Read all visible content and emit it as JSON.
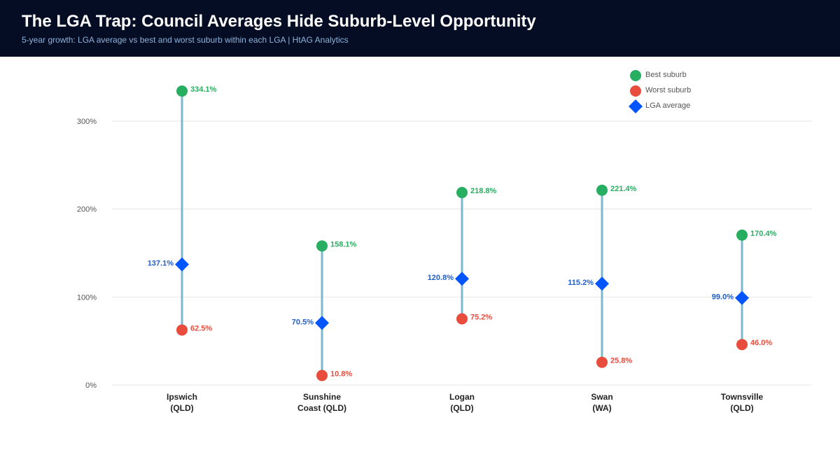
{
  "header": {
    "title": "The LGA Trap: Council Averages Hide Suburb-Level Opportunity",
    "subtitle": "5-year growth: LGA average vs best and worst suburb within each LGA  |  HtAG Analytics"
  },
  "colors": {
    "header_bg": "#040d24",
    "best": "#27ae60",
    "worst": "#e74c3c",
    "average": "#0055ff",
    "average_label": "#1f5fcc",
    "stem": "#7ab8cc",
    "grid": "#e6e6e6"
  },
  "chart_data": {
    "type": "dumbbell",
    "ylim": [
      0,
      300
    ],
    "yticks": [
      "0%",
      "100%",
      "200%",
      "300%"
    ],
    "ytick_values": [
      0,
      100,
      200,
      300
    ],
    "grid": true,
    "legend_position": "top-right",
    "legend": [
      {
        "key": "best",
        "label": "Best suburb",
        "marker": "circle"
      },
      {
        "key": "worst",
        "label": "Worst suburb",
        "marker": "circle"
      },
      {
        "key": "average",
        "label": "LGA average",
        "marker": "diamond"
      }
    ],
    "categories": [
      {
        "line1": "Ipswich",
        "line2": "(QLD)"
      },
      {
        "line1": "Sunshine",
        "line2": "Coast (QLD)"
      },
      {
        "line1": "Logan",
        "line2": "(QLD)"
      },
      {
        "line1": "Swan",
        "line2": "(WA)"
      },
      {
        "line1": "Townsville",
        "line2": "(QLD)"
      }
    ],
    "series": [
      {
        "key": "best",
        "name": "Best suburb",
        "values": [
          334.1,
          158.1,
          218.8,
          221.4,
          170.4
        ],
        "labels": [
          "334.1%",
          "158.1%",
          "218.8%",
          "221.4%",
          "170.4%"
        ]
      },
      {
        "key": "worst",
        "name": "Worst suburb",
        "values": [
          62.5,
          10.8,
          75.2,
          25.8,
          46.0
        ],
        "labels": [
          "62.5%",
          "10.8%",
          "75.2%",
          "25.8%",
          "46.0%"
        ]
      },
      {
        "key": "average",
        "name": "LGA average",
        "values": [
          137.1,
          70.5,
          120.8,
          115.2,
          99.0
        ],
        "labels": [
          "137.1%",
          "70.5%",
          "120.8%",
          "115.2%",
          "99.0%"
        ]
      }
    ]
  }
}
